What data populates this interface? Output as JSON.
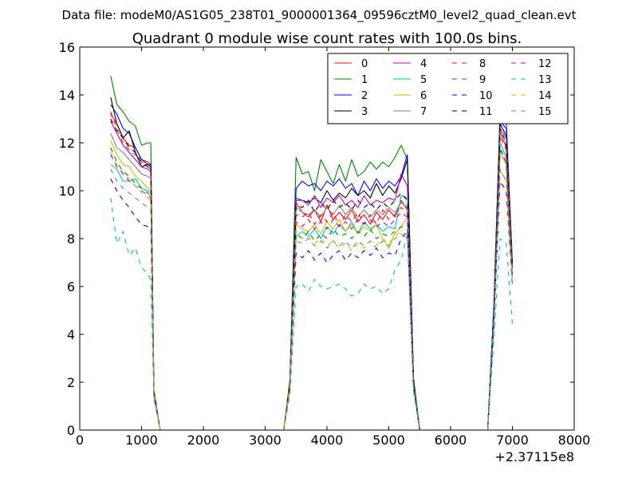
{
  "chart_data": {
    "type": "line",
    "suptitle": "Data file: modeM0/AS1G05_238T01_9000001364_09596cztM0_level2_quad_clean.evt",
    "title": "Quadrant 0 module wise count rates with 100.0s bins.",
    "xlabel": "",
    "ylabel": "",
    "x_offset_label": "+2.37115e8",
    "xlim": [
      0,
      8000
    ],
    "ylim": [
      0,
      16
    ],
    "xticks": [
      0,
      1000,
      2000,
      3000,
      4000,
      5000,
      6000,
      7000,
      8000
    ],
    "yticks": [
      0,
      2,
      4,
      6,
      8,
      10,
      12,
      14,
      16
    ],
    "grid": false,
    "legend_position": "top-right",
    "x": [
      500,
      600,
      700,
      800,
      900,
      1000,
      1100,
      1150,
      1200,
      1300,
      3300,
      3400,
      3500,
      3600,
      3700,
      3800,
      3900,
      4000,
      4100,
      4200,
      4300,
      4400,
      4500,
      4600,
      4700,
      4800,
      4900,
      5000,
      5100,
      5200,
      5300,
      5400,
      5500,
      5600,
      6600,
      6700,
      6800,
      6900,
      7000
    ],
    "series": [
      {
        "name": "0",
        "color": "#ff0000",
        "dash": "solid",
        "values": [
          13.2,
          12.8,
          12.2,
          11.9,
          11.8,
          11.3,
          11.2,
          11.1,
          1.6,
          0,
          0,
          1.9,
          9.5,
          9.1,
          8.9,
          9.2,
          8.7,
          9.4,
          8.8,
          9.1,
          8.8,
          9.2,
          8.7,
          9.0,
          8.6,
          9.1,
          8.8,
          9.2,
          8.9,
          9.6,
          9.2,
          2.0,
          0,
          0,
          0,
          5.0,
          12.5,
          11.8,
          6.8
        ]
      },
      {
        "name": "1",
        "color": "#008000",
        "dash": "solid",
        "values": [
          14.8,
          13.6,
          13.3,
          12.9,
          12.7,
          11.9,
          12.0,
          12.0,
          1.7,
          0,
          0,
          2.1,
          11.4,
          10.7,
          10.8,
          10.0,
          11.3,
          10.8,
          10.3,
          11.1,
          10.4,
          11.3,
          10.6,
          10.8,
          11.2,
          10.9,
          11.2,
          11.0,
          11.4,
          11.9,
          11.3,
          2.2,
          0,
          0,
          0,
          5.3,
          13.3,
          13.0,
          7.0
        ]
      },
      {
        "name": "2",
        "color": "#0000ff",
        "dash": "solid",
        "values": [
          13.6,
          13.2,
          12.6,
          12.4,
          11.8,
          11.3,
          11.1,
          11.1,
          1.6,
          0,
          0,
          2.0,
          10.1,
          10.4,
          10.2,
          10.3,
          10.0,
          10.4,
          10.2,
          10.5,
          10.1,
          10.3,
          9.8,
          10.4,
          10.0,
          10.5,
          10.1,
          10.4,
          10.2,
          10.6,
          11.5,
          2.1,
          0,
          0,
          0,
          5.2,
          12.9,
          12.6,
          6.9
        ]
      },
      {
        "name": "3",
        "color": "#000000",
        "dash": "solid",
        "values": [
          13.9,
          12.8,
          12.2,
          12.5,
          11.6,
          11.0,
          11.1,
          11.0,
          1.6,
          0,
          0,
          2.0,
          9.6,
          9.6,
          9.5,
          9.7,
          9.5,
          10.0,
          9.6,
          9.9,
          9.7,
          10.1,
          9.8,
          10.0,
          9.7,
          10.3,
          9.8,
          10.2,
          9.9,
          10.5,
          11.3,
          2.1,
          0,
          0,
          0,
          5.1,
          12.8,
          12.3,
          6.8
        ]
      },
      {
        "name": "4",
        "color": "#bf00bf",
        "dash": "solid",
        "values": [
          12.9,
          12.4,
          11.9,
          11.6,
          11.3,
          11.0,
          10.9,
          10.8,
          1.6,
          0,
          0,
          1.9,
          9.7,
          9.6,
          9.4,
          9.8,
          9.3,
          9.7,
          9.5,
          9.8,
          9.4,
          9.6,
          9.3,
          9.8,
          9.4,
          9.6,
          9.5,
          9.7,
          9.6,
          10.7,
          10.2,
          2.0,
          0,
          0,
          0,
          5.0,
          12.6,
          12.2,
          6.8
        ]
      },
      {
        "name": "5",
        "color": "#00bfbf",
        "dash": "solid",
        "values": [
          11.1,
          10.9,
          10.4,
          10.4,
          10.5,
          10.1,
          10.0,
          9.9,
          1.5,
          0,
          0,
          1.8,
          8.1,
          8.3,
          8.1,
          8.4,
          8.0,
          8.5,
          8.2,
          8.6,
          8.3,
          8.7,
          8.2,
          8.7,
          8.4,
          8.6,
          8.3,
          8.5,
          8.4,
          9.8,
          9.7,
          1.9,
          0,
          0,
          0,
          4.8,
          12.0,
          11.4,
          6.5
        ]
      },
      {
        "name": "6",
        "color": "#bfbf00",
        "dash": "solid",
        "values": [
          12.1,
          11.5,
          11.1,
          11.0,
          10.6,
          10.4,
          10.1,
          10.0,
          1.5,
          0,
          0,
          1.8,
          8.6,
          8.4,
          8.3,
          8.6,
          8.2,
          8.7,
          8.4,
          8.8,
          8.3,
          8.6,
          8.2,
          8.5,
          8.3,
          8.6,
          8.0,
          7.6,
          8.2,
          8.5,
          8.9,
          1.9,
          0,
          0,
          0,
          4.7,
          11.6,
          11.1,
          6.4
        ]
      },
      {
        "name": "7",
        "color": "#7f7f7f",
        "dash": "solid",
        "values": [
          12.4,
          11.8,
          11.6,
          11.3,
          11.0,
          10.7,
          10.6,
          10.5,
          1.6,
          0,
          0,
          1.9,
          9.3,
          9.1,
          9.0,
          9.2,
          8.9,
          9.3,
          9.0,
          9.4,
          9.0,
          9.3,
          8.9,
          9.2,
          8.9,
          9.2,
          9.0,
          9.3,
          9.1,
          9.5,
          9.3,
          1.9,
          0,
          0,
          0,
          4.9,
          12.4,
          11.9,
          6.7
        ]
      },
      {
        "name": "8",
        "color": "#ff0000",
        "dash": "dashed",
        "values": [
          13.3,
          12.6,
          12.0,
          11.7,
          11.5,
          11.2,
          11.0,
          10.9,
          1.6,
          0,
          0,
          1.9,
          9.0,
          8.9,
          9.1,
          8.6,
          9.0,
          8.7,
          9.1,
          8.5,
          9.0,
          8.7,
          9.1,
          8.6,
          9.0,
          8.6,
          9.2,
          8.8,
          9.0,
          9.3,
          9.1,
          2.0,
          0,
          0,
          0,
          5.0,
          12.3,
          11.7,
          6.7
        ]
      },
      {
        "name": "9",
        "color": "#008000",
        "dash": "dashed",
        "values": [
          11.8,
          11.2,
          10.8,
          10.6,
          10.3,
          10.1,
          9.9,
          9.8,
          1.5,
          0,
          0,
          1.8,
          8.2,
          8.0,
          8.3,
          7.9,
          8.2,
          8.0,
          8.4,
          8.1,
          8.2,
          8.0,
          8.3,
          8.1,
          8.4,
          8.0,
          8.2,
          8.1,
          8.3,
          8.5,
          8.4,
          1.8,
          0,
          0,
          0,
          4.7,
          11.8,
          11.2,
          6.4
        ]
      },
      {
        "name": "10",
        "color": "#0000ff",
        "dash": "dashed",
        "values": [
          10.5,
          10.0,
          9.6,
          9.3,
          8.9,
          8.6,
          8.5,
          8.4,
          1.4,
          0,
          0,
          1.7,
          7.4,
          7.2,
          7.5,
          7.1,
          7.4,
          7.0,
          7.3,
          7.5,
          7.1,
          7.4,
          7.2,
          7.5,
          7.3,
          7.6,
          7.2,
          7.4,
          7.3,
          8.0,
          8.3,
          1.8,
          0,
          0,
          0,
          4.4,
          10.4,
          10.0,
          6.0
        ]
      },
      {
        "name": "11",
        "color": "#000000",
        "dash": "dashed",
        "values": [
          13.0,
          12.5,
          12.2,
          11.8,
          11.6,
          11.2,
          11.0,
          10.9,
          1.6,
          0,
          0,
          1.9,
          9.4,
          9.3,
          9.6,
          9.1,
          9.5,
          9.2,
          9.6,
          9.3,
          9.5,
          9.2,
          9.6,
          9.3,
          9.5,
          9.2,
          9.5,
          9.3,
          9.6,
          9.9,
          9.6,
          2.0,
          0,
          0,
          0,
          5.0,
          12.6,
          12.0,
          6.8
        ]
      },
      {
        "name": "12",
        "color": "#bf00bf",
        "dash": "dashed",
        "values": [
          11.5,
          11.0,
          10.7,
          10.4,
          10.2,
          10.0,
          9.8,
          9.7,
          1.5,
          0,
          0,
          1.8,
          8.7,
          8.5,
          8.8,
          8.4,
          8.7,
          8.4,
          8.8,
          8.5,
          8.7,
          8.4,
          8.8,
          8.6,
          8.8,
          8.5,
          8.7,
          8.5,
          8.8,
          9.1,
          8.9,
          1.9,
          0,
          0,
          0,
          4.8,
          11.7,
          11.2,
          6.5
        ]
      },
      {
        "name": "13",
        "color": "#00bfbf",
        "dash": "dashed",
        "values": [
          9.7,
          7.8,
          8.3,
          7.3,
          7.6,
          6.8,
          6.5,
          6.3,
          1.3,
          0,
          0,
          1.5,
          6.0,
          6.1,
          5.8,
          6.3,
          6.0,
          5.9,
          6.0,
          6.1,
          5.9,
          5.6,
          5.7,
          6.1,
          5.9,
          6.0,
          5.7,
          5.9,
          6.7,
          7.1,
          8.2,
          1.6,
          0,
          0,
          0,
          3.8,
          8.0,
          7.8,
          4.4
        ]
      },
      {
        "name": "14",
        "color": "#bfbf00",
        "dash": "dashed",
        "values": [
          11.6,
          11.1,
          10.8,
          10.5,
          10.2,
          9.9,
          9.7,
          9.6,
          1.5,
          0,
          0,
          1.8,
          8.3,
          8.0,
          8.1,
          7.8,
          8.0,
          7.7,
          7.9,
          7.6,
          7.8,
          7.5,
          7.8,
          7.6,
          7.9,
          7.7,
          8.0,
          7.8,
          8.1,
          8.3,
          8.1,
          1.8,
          0,
          0,
          0,
          4.6,
          10.8,
          10.5,
          6.2
        ]
      },
      {
        "name": "15",
        "color": "#7f7f7f",
        "dash": "dashed",
        "values": [
          10.9,
          10.4,
          10.1,
          9.9,
          9.7,
          9.5,
          9.3,
          9.2,
          1.4,
          0,
          0,
          1.7,
          7.9,
          7.8,
          8.0,
          7.7,
          7.9,
          7.6,
          7.9,
          7.7,
          7.9,
          7.6,
          7.9,
          7.7,
          7.9,
          7.6,
          7.9,
          7.7,
          8.0,
          8.2,
          8.0,
          1.8,
          0,
          0,
          0,
          4.5,
          10.9,
          10.4,
          6.1
        ]
      }
    ]
  }
}
